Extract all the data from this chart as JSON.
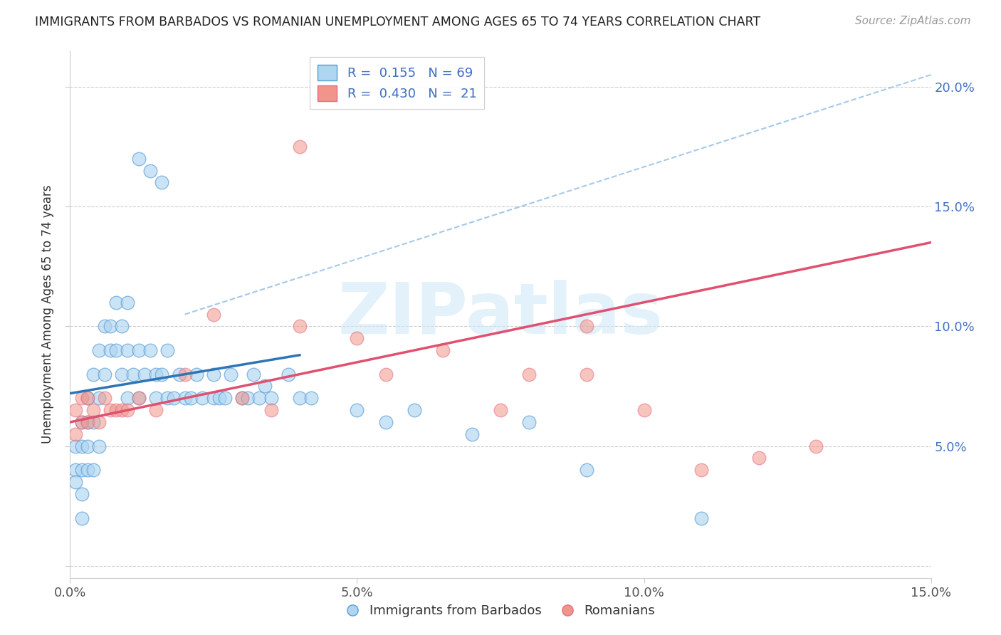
{
  "title": "IMMIGRANTS FROM BARBADOS VS ROMANIAN UNEMPLOYMENT AMONG AGES 65 TO 74 YEARS CORRELATION CHART",
  "source": "Source: ZipAtlas.com",
  "ylabel": "Unemployment Among Ages 65 to 74 years",
  "xlim": [
    0.0,
    0.15
  ],
  "ylim": [
    -0.005,
    0.215
  ],
  "x_ticks": [
    0.0,
    0.05,
    0.1,
    0.15
  ],
  "x_tick_labels": [
    "0.0%",
    "5.0%",
    "10.0%",
    "15.0%"
  ],
  "y_ticks": [
    0.0,
    0.05,
    0.1,
    0.15,
    0.2
  ],
  "y_tick_labels_right": [
    "",
    "5.0%",
    "10.0%",
    "15.0%",
    "20.0%"
  ],
  "color_blue_fill": "#AED6F1",
  "color_blue_edge": "#5B9BD5",
  "color_pink_fill": "#F1948A",
  "color_pink_edge": "#E07080",
  "color_line_blue": "#2E75B6",
  "color_line_pink": "#E05070",
  "color_line_dash": "#9DC3E6",
  "watermark_text": "ZIPatlas",
  "blue_trend_x": [
    0.0,
    0.04
  ],
  "blue_trend_y": [
    0.072,
    0.088
  ],
  "pink_trend_x": [
    0.0,
    0.15
  ],
  "pink_trend_y": [
    0.06,
    0.135
  ],
  "dash_trend_x": [
    0.02,
    0.15
  ],
  "dash_trend_y": [
    0.105,
    0.205
  ],
  "blue_x": [
    0.001,
    0.001,
    0.001,
    0.002,
    0.002,
    0.002,
    0.002,
    0.002,
    0.003,
    0.003,
    0.003,
    0.003,
    0.004,
    0.004,
    0.004,
    0.005,
    0.005,
    0.005,
    0.006,
    0.006,
    0.007,
    0.007,
    0.008,
    0.008,
    0.009,
    0.009,
    0.01,
    0.01,
    0.01,
    0.011,
    0.012,
    0.012,
    0.013,
    0.014,
    0.015,
    0.015,
    0.016,
    0.017,
    0.017,
    0.018,
    0.019,
    0.02,
    0.021,
    0.022,
    0.023,
    0.025,
    0.025,
    0.026,
    0.027,
    0.028,
    0.03,
    0.031,
    0.032,
    0.033,
    0.034,
    0.035,
    0.038,
    0.04,
    0.042,
    0.05,
    0.055,
    0.06,
    0.07,
    0.08,
    0.09,
    0.11,
    0.012,
    0.014,
    0.016
  ],
  "blue_y": [
    0.05,
    0.04,
    0.035,
    0.06,
    0.05,
    0.04,
    0.03,
    0.02,
    0.07,
    0.06,
    0.05,
    0.04,
    0.08,
    0.06,
    0.04,
    0.09,
    0.07,
    0.05,
    0.1,
    0.08,
    0.1,
    0.09,
    0.11,
    0.09,
    0.1,
    0.08,
    0.11,
    0.09,
    0.07,
    0.08,
    0.09,
    0.07,
    0.08,
    0.09,
    0.08,
    0.07,
    0.08,
    0.07,
    0.09,
    0.07,
    0.08,
    0.07,
    0.07,
    0.08,
    0.07,
    0.07,
    0.08,
    0.07,
    0.07,
    0.08,
    0.07,
    0.07,
    0.08,
    0.07,
    0.075,
    0.07,
    0.08,
    0.07,
    0.07,
    0.065,
    0.06,
    0.065,
    0.055,
    0.06,
    0.04,
    0.02,
    0.17,
    0.165,
    0.16
  ],
  "pink_x": [
    0.001,
    0.001,
    0.002,
    0.002,
    0.003,
    0.003,
    0.004,
    0.005,
    0.006,
    0.007,
    0.008,
    0.009,
    0.01,
    0.012,
    0.015,
    0.02,
    0.025,
    0.03,
    0.035,
    0.04,
    0.05,
    0.055,
    0.065,
    0.075,
    0.08,
    0.09,
    0.1,
    0.11,
    0.12,
    0.13
  ],
  "pink_y": [
    0.065,
    0.055,
    0.07,
    0.06,
    0.07,
    0.06,
    0.065,
    0.06,
    0.07,
    0.065,
    0.065,
    0.065,
    0.065,
    0.07,
    0.065,
    0.08,
    0.105,
    0.07,
    0.065,
    0.1,
    0.095,
    0.08,
    0.09,
    0.065,
    0.08,
    0.08,
    0.065,
    0.04,
    0.045,
    0.05
  ],
  "pink_outlier_x": [
    0.04
  ],
  "pink_outlier_y": [
    0.175
  ],
  "pink_far_x": [
    0.09
  ],
  "pink_far_y": [
    0.1
  ]
}
